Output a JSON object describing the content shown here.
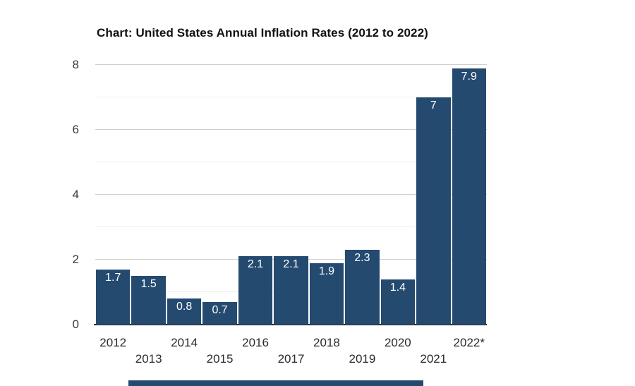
{
  "chart": {
    "title": "Chart: United States Annual Inflation Rates (2012 to 2022)"
  },
  "chart_data": {
    "type": "bar",
    "title": "Chart: United States Annual Inflation Rates (2012 to 2022)",
    "categories": [
      "2012",
      "2013",
      "2014",
      "2015",
      "2016",
      "2017",
      "2018",
      "2019",
      "2020",
      "2021",
      "2022*"
    ],
    "values": [
      1.7,
      1.5,
      0.8,
      0.7,
      2.1,
      2.1,
      1.9,
      2.3,
      1.4,
      7,
      7.9
    ],
    "bar_labels": [
      "1.7",
      "1.5",
      "0.8",
      "0.7",
      "2.1",
      "2.1",
      "1.9",
      "2.3",
      "1.4",
      "7",
      "7.9"
    ],
    "xlabel": "",
    "ylabel": "",
    "ylim": [
      0,
      8
    ],
    "ytick_labels": [
      "0",
      "2",
      "4",
      "6",
      "8"
    ],
    "yticks_major": [
      2,
      4,
      6,
      8
    ],
    "yticks_minor": [
      1,
      3,
      5,
      7
    ],
    "grid": true,
    "legend": false,
    "x_labels_staggered": true,
    "colors": {
      "bar": "#254a70",
      "bar_label_text": "#ffffff",
      "gridline_major": "#cfcfcf",
      "gridline_minor": "#ececec",
      "axis_baseline": "#2e2e2e",
      "tick_text": "#3a3a3a",
      "title_text": "#111111",
      "background": "#ffffff"
    }
  },
  "cropped_bottom_element": {
    "color": "#254a70"
  }
}
